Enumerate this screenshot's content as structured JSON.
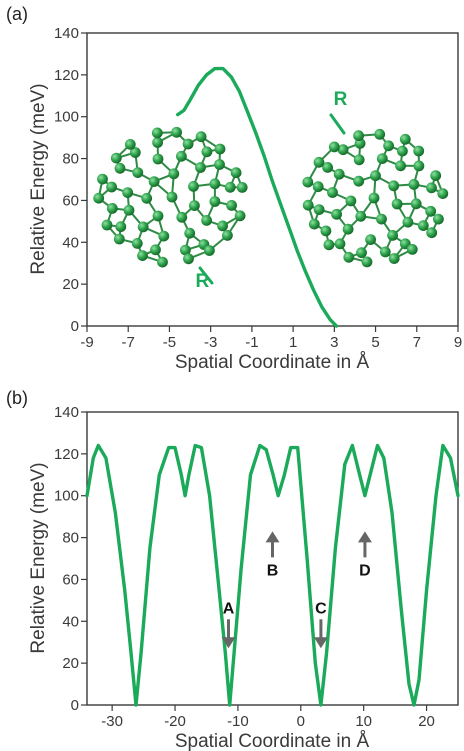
{
  "colors": {
    "curve": "#1aaa5a",
    "axis": "#3a3a3a",
    "molecule": "#2e9a48",
    "arrow": "#666666"
  },
  "chart_data": [
    {
      "panel_label": "(a)",
      "type": "line",
      "xlabel": "Spatial Coordinate in Å",
      "ylabel": "Relative Energy (meV)",
      "xlim": [
        -9,
        9
      ],
      "ylim": [
        0,
        140
      ],
      "xticks": [
        "-9",
        "-7",
        "-5",
        "-3",
        "-1",
        "1",
        "3",
        "5",
        "7",
        "9"
      ],
      "yticks": [
        "0",
        "20",
        "40",
        "60",
        "80",
        "100",
        "120",
        "140"
      ],
      "series": [
        {
          "x": [
            -4.6,
            -4.3,
            -4.0,
            -3.6,
            -3.2,
            -2.8,
            -2.4,
            -2.0,
            -1.6,
            -1.2,
            -0.8,
            -0.4,
            0.0,
            0.4,
            0.8,
            1.2,
            1.6,
            2.0,
            2.4,
            2.8,
            3.1
          ],
          "y": [
            101,
            103,
            108,
            115,
            120,
            123,
            123,
            119,
            112,
            102,
            92,
            81,
            69,
            58,
            47,
            36,
            26,
            17,
            9,
            3,
            0
          ]
        }
      ],
      "annotations": [
        {
          "text": "R",
          "x": -3.4,
          "y": 22
        },
        {
          "text": "R",
          "x": 3.3,
          "y": 109
        }
      ]
    },
    {
      "panel_label": "(b)",
      "type": "line",
      "xlabel": "Spatial Coordinate in Å",
      "ylabel": "Relative Energy (meV)",
      "xlim": [
        -34,
        25
      ],
      "ylim": [
        0,
        140
      ],
      "xticks": [
        "-30",
        "-20",
        "-10",
        "0",
        "10",
        "20"
      ],
      "yticks": [
        "0",
        "20",
        "40",
        "60",
        "80",
        "100",
        "120",
        "140"
      ],
      "series": [
        {
          "x": [
            -34.0,
            -33.0,
            -32.2,
            -31.0,
            -29.5,
            -28.0,
            -27.0,
            -26.2,
            -25.4,
            -24.0,
            -22.5,
            -21.0,
            -20.0,
            -19.0,
            -18.4,
            -17.8,
            -16.8,
            -15.8,
            -14.5,
            -13.0,
            -12.0,
            -11.3,
            -10.6,
            -9.5,
            -8.0,
            -6.5,
            -5.5,
            -4.4,
            -3.6,
            -2.6,
            -1.6,
            -0.5,
            1.0,
            2.3,
            3.2,
            4.1,
            5.5,
            7.0,
            8.2,
            9.2,
            10.2,
            11.2,
            12.2,
            13.2,
            14.5,
            16.0,
            17.2,
            18.0,
            18.8,
            20.0,
            21.5,
            22.6,
            23.8,
            25.0
          ],
          "y": [
            100,
            118,
            124,
            118,
            92,
            55,
            25,
            0,
            25,
            75,
            110,
            123,
            123,
            110,
            100,
            110,
            124,
            123,
            100,
            55,
            25,
            0,
            25,
            65,
            110,
            124,
            122,
            110,
            100,
            110,
            123,
            123,
            70,
            20,
            0,
            25,
            75,
            115,
            124,
            112,
            100,
            112,
            124,
            118,
            92,
            45,
            10,
            0,
            12,
            55,
            100,
            124,
            118,
            100
          ]
        }
      ],
      "annotations": [
        {
          "text": "A",
          "x": -11.5,
          "y": 40,
          "arrow": "down"
        },
        {
          "text": "B",
          "x": -4.5,
          "y": 82,
          "arrow": "up"
        },
        {
          "text": "C",
          "x": 3.2,
          "y": 40,
          "arrow": "down"
        },
        {
          "text": "D",
          "x": 10.2,
          "y": 82,
          "arrow": "up"
        }
      ]
    }
  ]
}
